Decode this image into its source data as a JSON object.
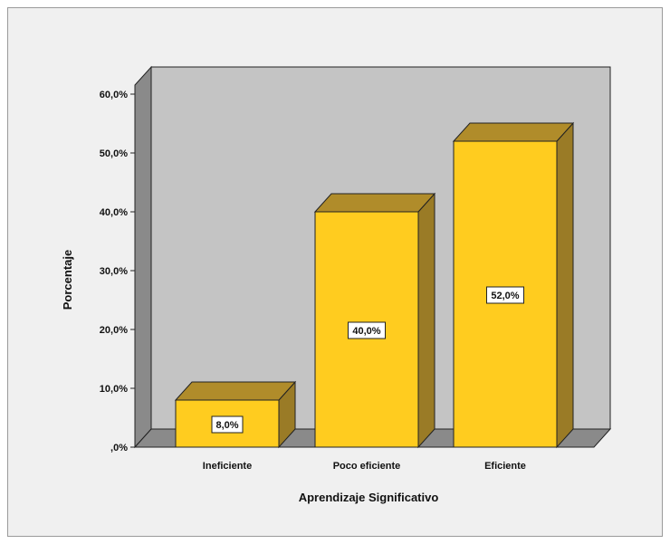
{
  "chart_data": {
    "type": "bar",
    "categories": [
      "Ineficiente",
      "Poco eficiente",
      "Eficiente"
    ],
    "values": [
      8.0,
      40.0,
      52.0
    ],
    "value_labels": [
      "8,0%",
      "40,0%",
      "52,0%"
    ],
    "xlabel": "Aprendizaje Significativo",
    "ylabel": "Porcentaje",
    "ylim": [
      0,
      60
    ],
    "yticks": [
      ",0%",
      "10,0%",
      "20,0%",
      "30,0%",
      "40,0%",
      "50,0%",
      "60,0%"
    ],
    "style": "3d",
    "colors": {
      "bar_front": "#ffcc1f",
      "bar_side": "#9a7b26",
      "bar_top": "#b08c2a",
      "back_wall": "#c4c4c4",
      "side_wall": "#8a8a8a",
      "floor": "#8a8a8a",
      "background": "#f0f0f0"
    }
  }
}
